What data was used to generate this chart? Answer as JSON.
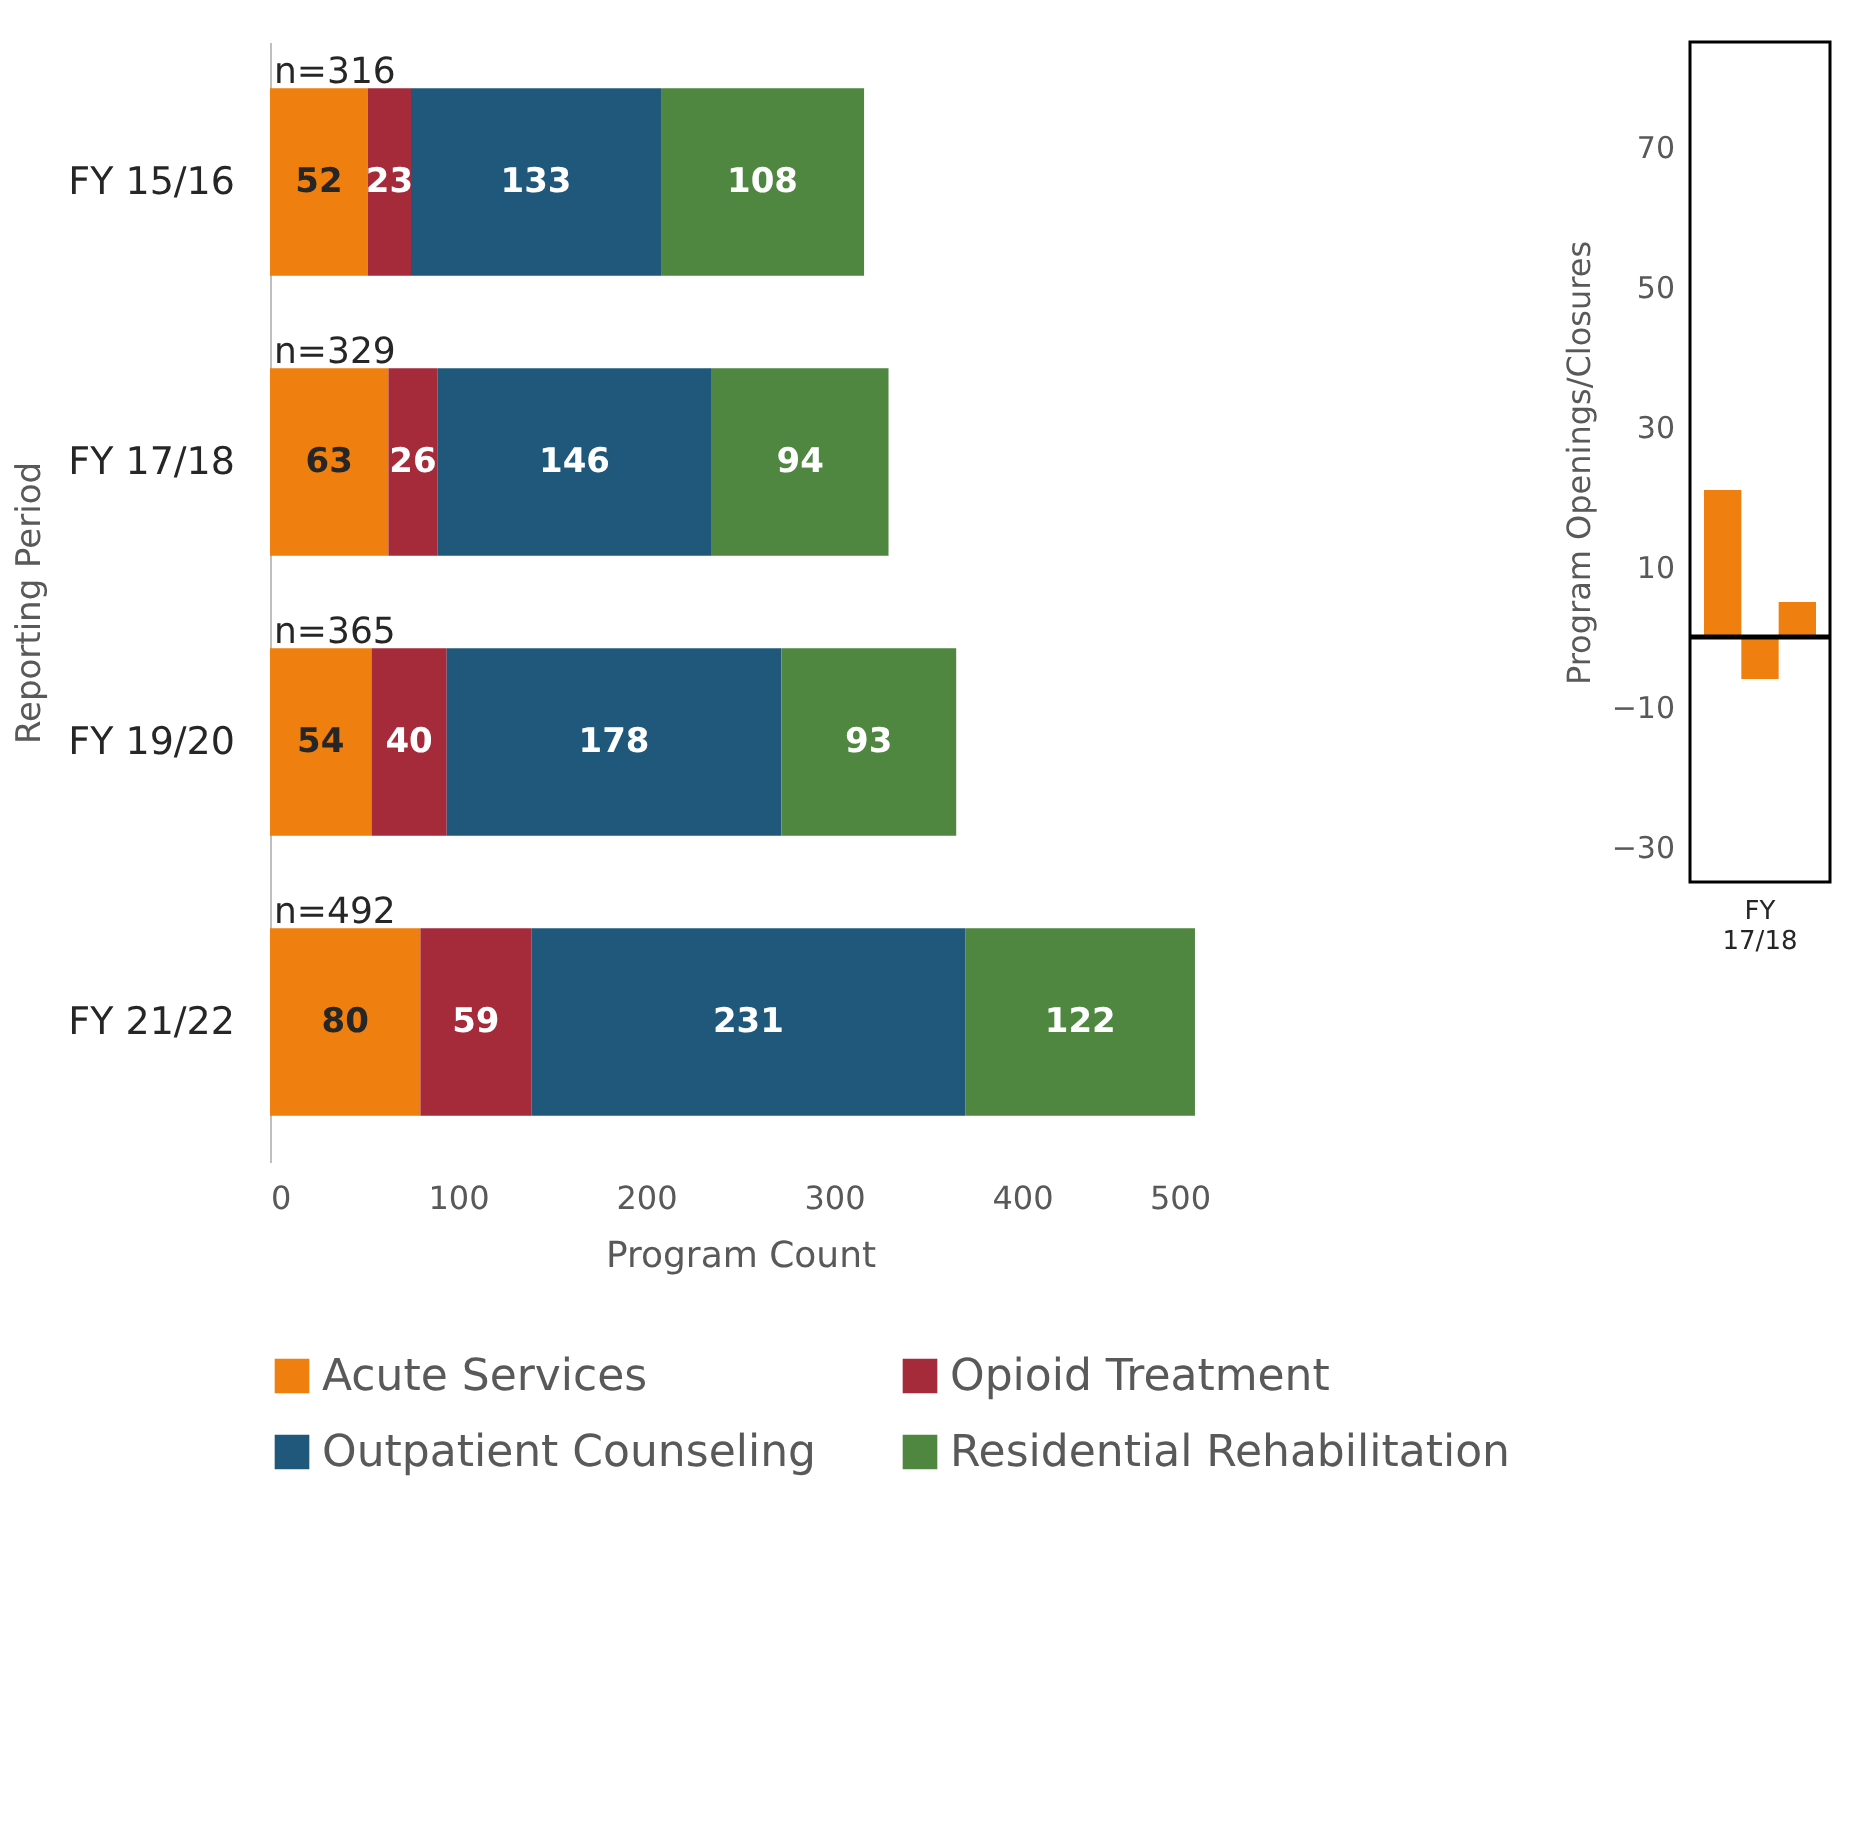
{
  "chart_data": [
    {
      "type": "bar",
      "orientation": "horizontal",
      "stacked": true,
      "xlabel": "Program Count",
      "ylabel": "Reporting Period",
      "categories": [
        "FY 15/16",
        "FY 17/18",
        "FY 19/20",
        "FY 21/22"
      ],
      "series": [
        {
          "name": "Acute Services",
          "color": "#ef7f0e",
          "values": [
            52,
            63,
            54,
            80
          ]
        },
        {
          "name": "Opioid Treatment",
          "color": "#a52a3a",
          "values": [
            23,
            26,
            40,
            59
          ]
        },
        {
          "name": "Outpatient Counseling",
          "color": "#1f587b",
          "values": [
            133,
            146,
            178,
            231
          ]
        },
        {
          "name": "Residential Rehabilitation",
          "color": "#4f8741",
          "values": [
            108,
            94,
            93,
            122
          ]
        }
      ],
      "xlim": [
        0,
        500
      ],
      "xticks": [
        0,
        100,
        200,
        300,
        400,
        500
      ],
      "grid": false,
      "data_labels": true,
      "totals": [
        "n=316",
        "n=329",
        "n=365",
        "n=492"
      ],
      "legend": "bottom"
    },
    {
      "type": "bar",
      "ylabel": "Program Openings/Closures",
      "categories": [
        "FY 17/18"
      ],
      "series": [
        {
          "color": "#ef7f0e",
          "values": [
            21
          ]
        },
        {
          "color": "#ef7f0e",
          "values": [
            -6
          ]
        },
        {
          "color": "#ef7f0e",
          "values": [
            5
          ]
        }
      ],
      "ylim": [
        -35,
        85
      ],
      "yticks": [
        -30,
        -10,
        10,
        30,
        50,
        70
      ],
      "grid": false,
      "ref_lines": [
        {
          "axis": "y",
          "value": 0,
          "color": "#000000"
        }
      ]
    }
  ]
}
